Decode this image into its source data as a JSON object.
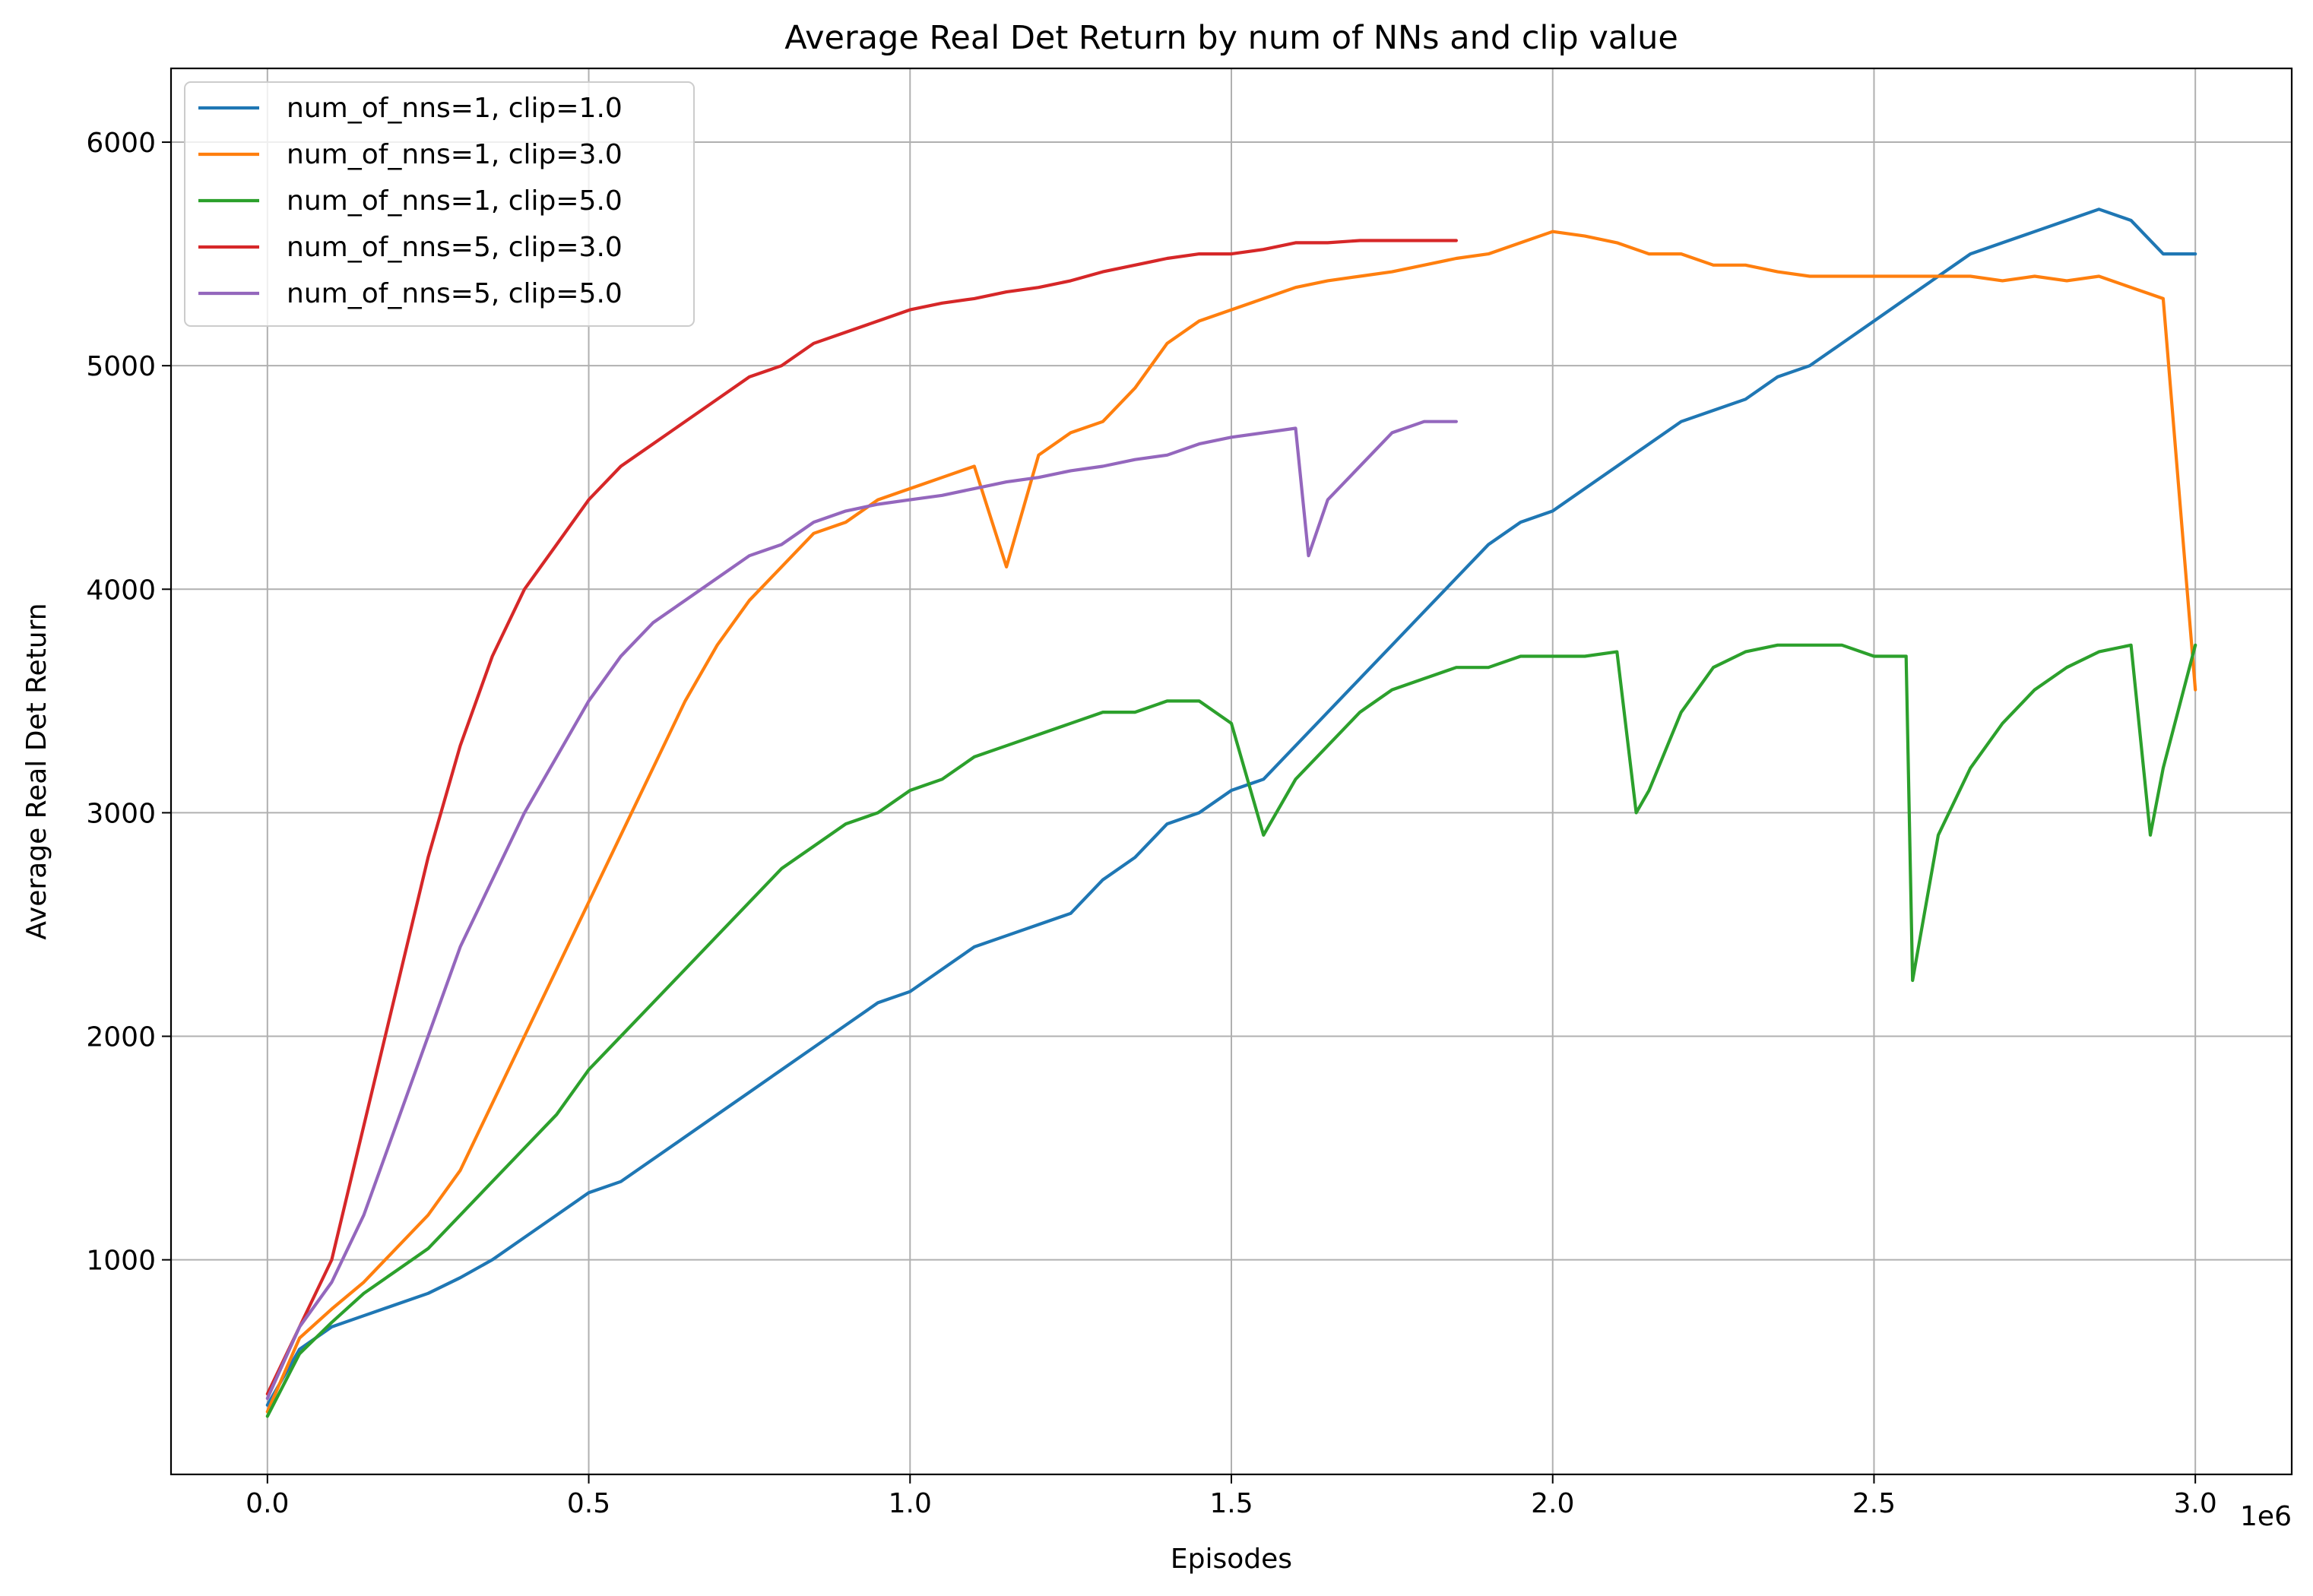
{
  "chart_data": {
    "type": "line",
    "title": "Average Real Det Return by num of NNs and clip value",
    "xlabel": "Episodes",
    "ylabel": "Average Real Det Return",
    "x_offset_label": "1e6",
    "xlim": [
      -0.15,
      3.15
    ],
    "ylim": [
      40,
      6330
    ],
    "x_ticks": [
      0.0,
      0.5,
      1.0,
      1.5,
      2.0,
      2.5,
      3.0
    ],
    "x_tick_labels": [
      "0.0",
      "0.5",
      "1.0",
      "1.5",
      "2.0",
      "2.5",
      "3.0"
    ],
    "y_ticks": [
      1000,
      2000,
      3000,
      4000,
      5000,
      6000
    ],
    "y_tick_labels": [
      "1000",
      "2000",
      "3000",
      "4000",
      "5000",
      "6000"
    ],
    "grid": true,
    "legend_position": "top-left",
    "series": [
      {
        "name": "num_of_nns=1, clip=1.0",
        "color": "#1f77b4",
        "x": [
          0.0,
          0.05,
          0.1,
          0.15,
          0.2,
          0.25,
          0.3,
          0.35,
          0.4,
          0.45,
          0.5,
          0.55,
          0.6,
          0.65,
          0.7,
          0.75,
          0.8,
          0.85,
          0.9,
          0.95,
          1.0,
          1.05,
          1.1,
          1.15,
          1.2,
          1.25,
          1.3,
          1.35,
          1.4,
          1.45,
          1.5,
          1.55,
          1.6,
          1.65,
          1.7,
          1.75,
          1.8,
          1.85,
          1.9,
          1.95,
          2.0,
          2.05,
          2.1,
          2.15,
          2.2,
          2.25,
          2.3,
          2.35,
          2.4,
          2.45,
          2.5,
          2.55,
          2.6,
          2.65,
          2.7,
          2.75,
          2.8,
          2.85,
          2.9,
          2.95,
          3.0
        ],
        "y": [
          350,
          600,
          700,
          750,
          800,
          850,
          920,
          1000,
          1100,
          1200,
          1300,
          1350,
          1450,
          1550,
          1650,
          1750,
          1850,
          1950,
          2050,
          2150,
          2200,
          2300,
          2400,
          2450,
          2500,
          2550,
          2700,
          2800,
          2950,
          3000,
          3100,
          3150,
          3300,
          3450,
          3600,
          3750,
          3900,
          4050,
          4200,
          4300,
          4350,
          4450,
          4550,
          4650,
          4750,
          4800,
          4850,
          4950,
          5000,
          5100,
          5200,
          5300,
          5400,
          5500,
          5550,
          5600,
          5650,
          5700,
          5650,
          5500,
          5500
        ]
      },
      {
        "name": "num_of_nns=1, clip=3.0",
        "color": "#ff7f0e",
        "x": [
          0.0,
          0.05,
          0.1,
          0.15,
          0.2,
          0.25,
          0.3,
          0.35,
          0.4,
          0.45,
          0.5,
          0.55,
          0.6,
          0.65,
          0.7,
          0.75,
          0.8,
          0.85,
          0.9,
          0.95,
          1.0,
          1.05,
          1.1,
          1.15,
          1.2,
          1.25,
          1.3,
          1.35,
          1.4,
          1.45,
          1.5,
          1.55,
          1.6,
          1.65,
          1.7,
          1.75,
          1.8,
          1.85,
          1.9,
          1.95,
          2.0,
          2.05,
          2.1,
          2.15,
          2.2,
          2.25,
          2.3,
          2.35,
          2.4,
          2.45,
          2.5,
          2.55,
          2.6,
          2.65,
          2.7,
          2.75,
          2.8,
          2.85,
          2.9,
          2.95,
          3.0
        ],
        "y": [
          320,
          650,
          780,
          900,
          1050,
          1200,
          1400,
          1700,
          2000,
          2300,
          2600,
          2900,
          3200,
          3500,
          3750,
          3950,
          4100,
          4250,
          4300,
          4400,
          4450,
          4500,
          4550,
          4100,
          4600,
          4700,
          4750,
          4900,
          5100,
          5200,
          5250,
          5300,
          5350,
          5380,
          5400,
          5420,
          5450,
          5480,
          5500,
          5550,
          5600,
          5580,
          5550,
          5500,
          5500,
          5450,
          5450,
          5420,
          5400,
          5400,
          5400,
          5400,
          5400,
          5400,
          5380,
          5400,
          5380,
          5400,
          5350,
          5300,
          3550
        ]
      },
      {
        "name": "num_of_nns=1, clip=5.0",
        "color": "#2ca02c",
        "x": [
          0.0,
          0.05,
          0.1,
          0.15,
          0.2,
          0.25,
          0.3,
          0.35,
          0.4,
          0.45,
          0.5,
          0.55,
          0.6,
          0.65,
          0.7,
          0.75,
          0.8,
          0.85,
          0.9,
          0.95,
          1.0,
          1.05,
          1.1,
          1.15,
          1.2,
          1.25,
          1.3,
          1.35,
          1.4,
          1.45,
          1.5,
          1.55,
          1.6,
          1.65,
          1.7,
          1.75,
          1.8,
          1.85,
          1.9,
          1.95,
          2.0,
          2.05,
          2.1,
          2.13,
          2.15,
          2.2,
          2.25,
          2.3,
          2.35,
          2.4,
          2.45,
          2.5,
          2.55,
          2.56,
          2.6,
          2.65,
          2.7,
          2.75,
          2.8,
          2.85,
          2.9,
          2.93,
          2.95,
          3.0
        ],
        "y": [
          300,
          580,
          720,
          850,
          950,
          1050,
          1200,
          1350,
          1500,
          1650,
          1850,
          2000,
          2150,
          2300,
          2450,
          2600,
          2750,
          2850,
          2950,
          3000,
          3100,
          3150,
          3250,
          3300,
          3350,
          3400,
          3450,
          3450,
          3500,
          3500,
          3400,
          2900,
          3150,
          3300,
          3450,
          3550,
          3600,
          3650,
          3650,
          3700,
          3700,
          3700,
          3720,
          3000,
          3100,
          3450,
          3650,
          3720,
          3750,
          3750,
          3750,
          3700,
          3700,
          2250,
          2900,
          3200,
          3400,
          3550,
          3650,
          3720,
          3750,
          2900,
          3200,
          3750
        ]
      },
      {
        "name": "num_of_nns=5, clip=3.0",
        "color": "#d62728",
        "x": [
          0.0,
          0.05,
          0.1,
          0.15,
          0.2,
          0.25,
          0.3,
          0.35,
          0.4,
          0.45,
          0.5,
          0.55,
          0.6,
          0.65,
          0.7,
          0.75,
          0.8,
          0.85,
          0.9,
          0.95,
          1.0,
          1.05,
          1.1,
          1.15,
          1.2,
          1.25,
          1.3,
          1.35,
          1.4,
          1.45,
          1.5,
          1.55,
          1.6,
          1.65,
          1.7,
          1.75,
          1.8,
          1.85
        ],
        "y": [
          400,
          700,
          1000,
          1600,
          2200,
          2800,
          3300,
          3700,
          4000,
          4200,
          4400,
          4550,
          4650,
          4750,
          4850,
          4950,
          5000,
          5100,
          5150,
          5200,
          5250,
          5280,
          5300,
          5330,
          5350,
          5380,
          5420,
          5450,
          5480,
          5500,
          5500,
          5520,
          5550,
          5550,
          5560,
          5560,
          5560,
          5560
        ]
      },
      {
        "name": "num_of_nns=5, clip=5.0",
        "color": "#9467bd",
        "x": [
          0.0,
          0.05,
          0.1,
          0.15,
          0.2,
          0.25,
          0.3,
          0.35,
          0.4,
          0.45,
          0.5,
          0.55,
          0.6,
          0.65,
          0.7,
          0.75,
          0.8,
          0.85,
          0.9,
          0.95,
          1.0,
          1.05,
          1.1,
          1.15,
          1.2,
          1.25,
          1.3,
          1.35,
          1.4,
          1.45,
          1.5,
          1.55,
          1.6,
          1.62,
          1.65,
          1.7,
          1.75,
          1.8,
          1.85
        ],
        "y": [
          380,
          700,
          900,
          1200,
          1600,
          2000,
          2400,
          2700,
          3000,
          3250,
          3500,
          3700,
          3850,
          3950,
          4050,
          4150,
          4200,
          4300,
          4350,
          4380,
          4400,
          4420,
          4450,
          4480,
          4500,
          4530,
          4550,
          4580,
          4600,
          4650,
          4680,
          4700,
          4720,
          4150,
          4400,
          4550,
          4700,
          4750,
          4750
        ]
      }
    ]
  }
}
